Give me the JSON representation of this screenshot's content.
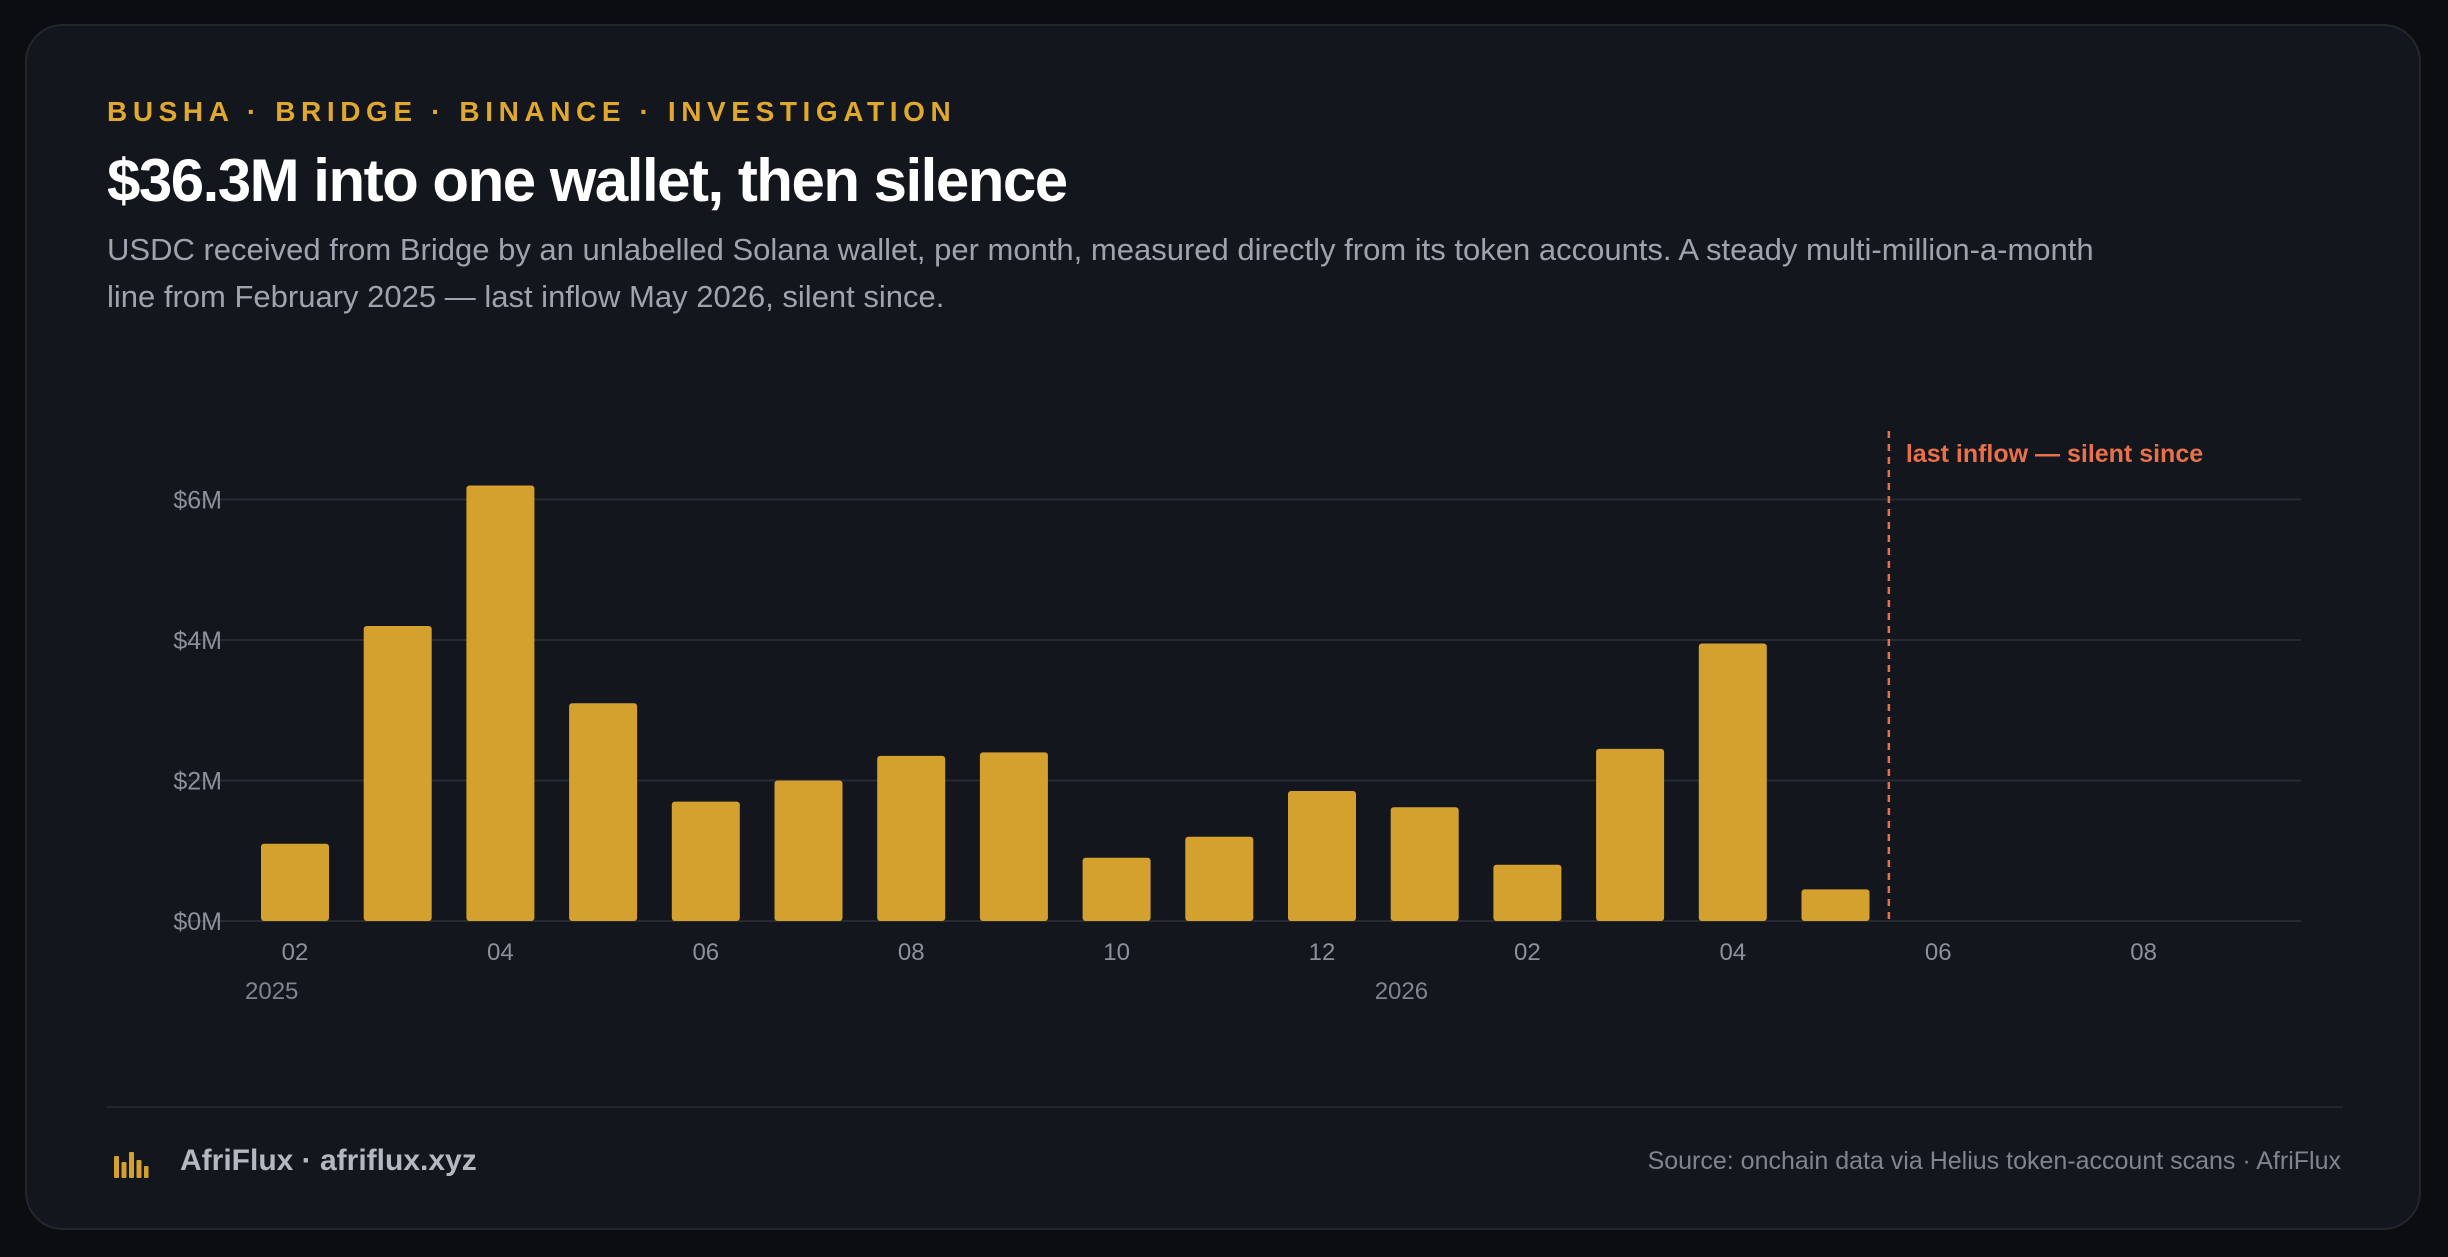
{
  "header": {
    "eyebrow": "BUSHA · BRIDGE · BINANCE · INVESTIGATION",
    "title": "$36.3M into one wallet, then silence",
    "subtitle": "USDC received from Bridge by an unlabelled Solana wallet, per month, measured directly from its token accounts. A steady multi-million-a-month line from February 2025 — last inflow May 2026, silent since."
  },
  "colors": {
    "bar": "#d4a12e",
    "accent_text": "#e0a92e",
    "marker": "#e8704a",
    "grid": "#262a33",
    "background": "#13161c"
  },
  "chart_data": {
    "type": "bar",
    "categories": [
      "2025-02",
      "2025-03",
      "2025-04",
      "2025-05",
      "2025-06",
      "2025-07",
      "2025-08",
      "2025-09",
      "2025-10",
      "2025-11",
      "2025-12",
      "2026-01",
      "2026-02",
      "2026-03",
      "2026-04",
      "2026-05",
      "2026-06",
      "2026-07",
      "2026-08",
      "2026-09"
    ],
    "values": [
      1.1,
      4.2,
      6.2,
      3.1,
      1.7,
      2.0,
      2.35,
      2.4,
      0.9,
      1.2,
      1.85,
      1.62,
      0.8,
      2.45,
      3.95,
      0.45,
      null,
      null,
      null,
      null
    ],
    "unit": "USD millions",
    "ylim": [
      0,
      7
    ],
    "yticks": [
      0,
      2,
      4,
      6
    ],
    "ytick_labels": [
      "$0M",
      "$2M",
      "$4M",
      "$6M"
    ],
    "xtick_labels": [
      "02",
      "04",
      "06",
      "08",
      "10",
      "12",
      "02",
      "04",
      "06",
      "08"
    ],
    "year_labels": [
      "2025",
      "2026"
    ],
    "grid": true,
    "legend": "none",
    "annotation": {
      "label": "last inflow — silent since",
      "after_category": "2026-05"
    }
  },
  "footer": {
    "brand": "AfriFlux · afriflux.xyz",
    "brand_icon": "bar-chart-icon",
    "source": "Source: onchain data via Helius token-account scans · AfriFlux"
  }
}
